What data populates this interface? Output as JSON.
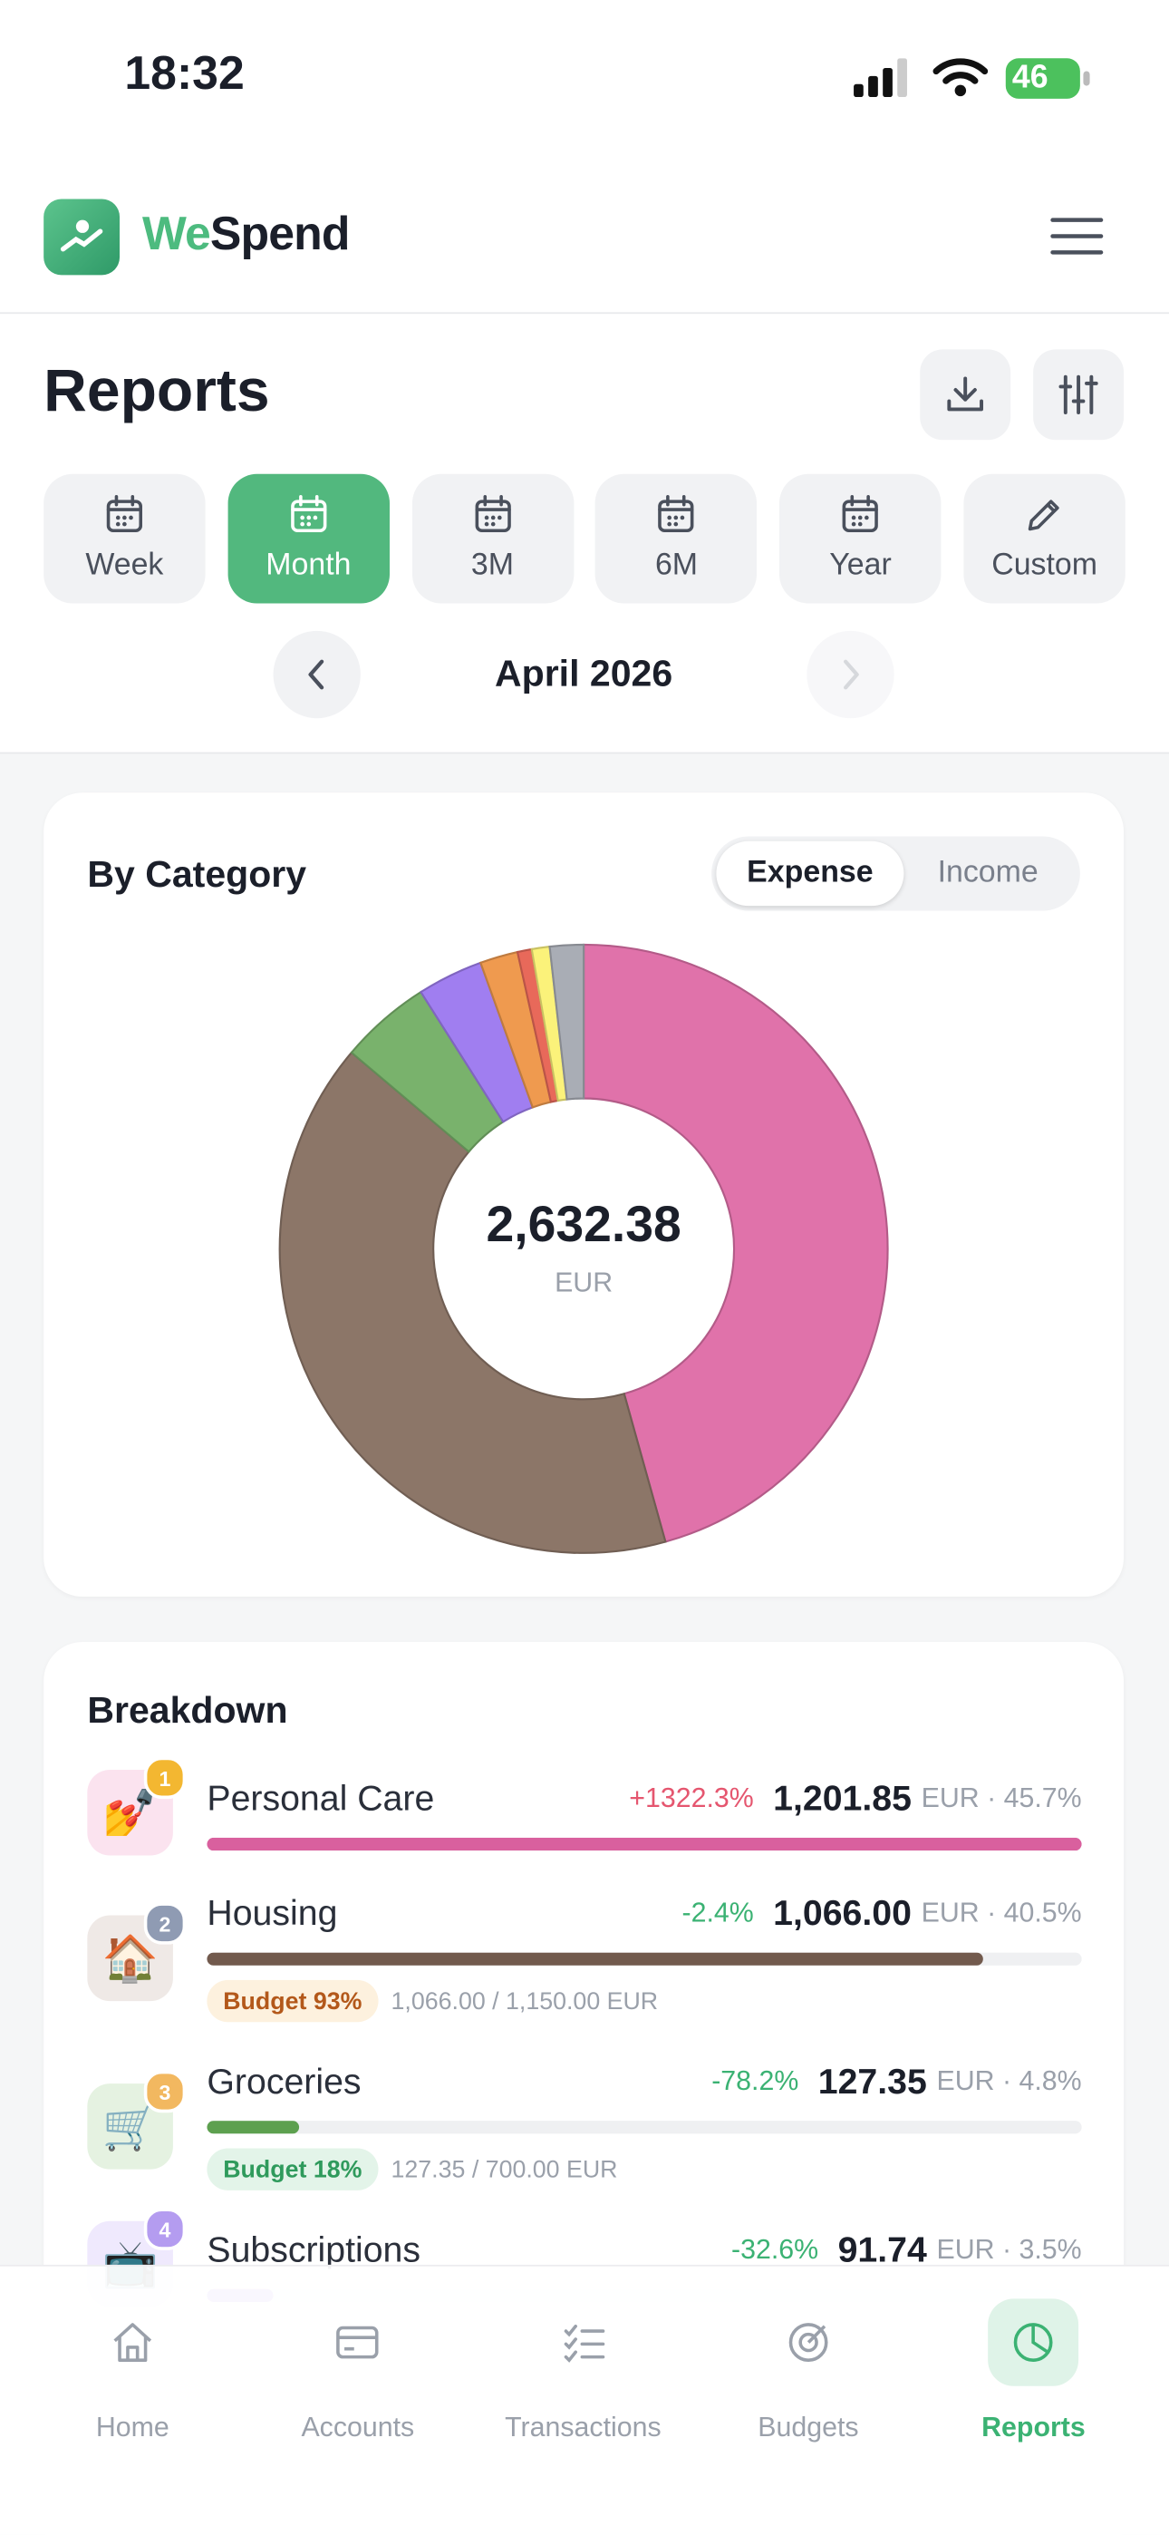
{
  "status_bar": {
    "time": "18:32",
    "battery": "46"
  },
  "header": {
    "brand_prefix": "We",
    "brand_suffix": "Spend"
  },
  "page": {
    "title": "Reports"
  },
  "periods": {
    "options": [
      "Week",
      "Month",
      "3M",
      "6M",
      "Year",
      "Custom"
    ],
    "active": "Month"
  },
  "date_nav": {
    "label": "April 2026"
  },
  "category_chart": {
    "type": "pie",
    "title": "By Category",
    "toggle": [
      "Expense",
      "Income"
    ],
    "toggle_active": "Expense",
    "center_value": "2,632.38",
    "center_unit": "EUR",
    "values": [
      1201.85,
      1066.0,
      127.35,
      91.74,
      53,
      20,
      25,
      47
    ],
    "colors": [
      "#e072aa",
      "#8c7668",
      "#79b26c",
      "#a07ef0",
      "#ef9a4f",
      "#e8695a",
      "#fbf27a",
      "#a9adb5"
    ]
  },
  "breakdown": {
    "title": "Breakdown",
    "items": [
      {
        "rank": 1,
        "icon": "💅",
        "name": "Personal Care",
        "change": "+1322.3%",
        "amount": 1201.85,
        "amount_label": "1,201.85",
        "share": "EUR · 45.7%",
        "color": "#d9609e",
        "icon_bg": "#fbe3ef",
        "badge_color": "#f3b731"
      },
      {
        "rank": 2,
        "icon": "🏠",
        "name": "Housing",
        "change": "-2.4%",
        "amount": 1066.0,
        "amount_label": "1,066.00",
        "share": "EUR · 40.5%",
        "color": "#725a4d",
        "icon_bg": "#efe9e6",
        "badge_color": "#8f9bb3",
        "budget": {
          "label": "Budget 93%",
          "detail": "1,066.00 / 1,150.00 EUR",
          "bg": "#fdf1de",
          "text_color": "#b3581a"
        }
      },
      {
        "rank": 3,
        "icon": "🛒",
        "name": "Groceries",
        "change": "-78.2%",
        "amount": 127.35,
        "amount_label": "127.35",
        "share": "EUR · 4.8%",
        "color": "#5da04f",
        "icon_bg": "#e5f2e1",
        "badge_color": "#f2b860",
        "budget": {
          "label": "Budget 18%",
          "detail": "127.35 / 700.00 EUR",
          "bg": "#e3f4e9",
          "text_color": "#2f9a5c"
        }
      },
      {
        "rank": 4,
        "icon": "📺",
        "name": "Subscriptions",
        "change": "-32.6%",
        "amount": 91.74,
        "amount_label": "91.74",
        "share": "EUR · 3.5%",
        "color": "#9b7be8",
        "icon_bg": "#efe9fd",
        "badge_color": "#b49cf0"
      }
    ]
  },
  "nav": {
    "items": [
      "Home",
      "Accounts",
      "Transactions",
      "Budgets",
      "Reports"
    ],
    "active": "Reports"
  }
}
